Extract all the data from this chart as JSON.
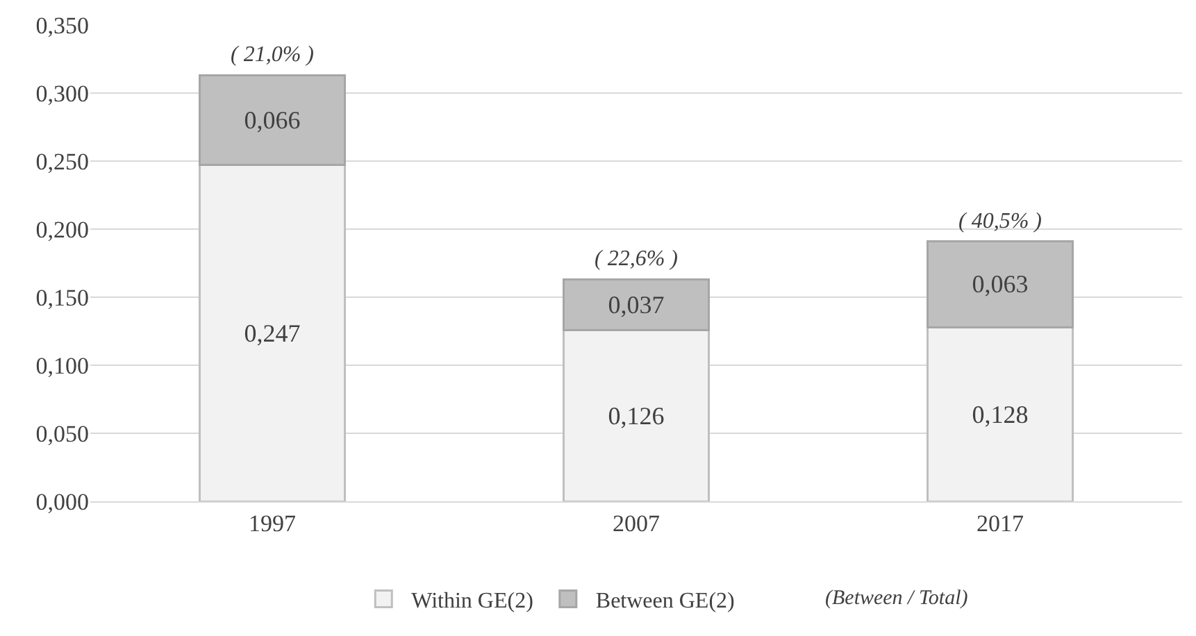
{
  "chart_data": {
    "type": "bar",
    "stacked": true,
    "categories": [
      "1997",
      "2007",
      "2017"
    ],
    "series": [
      {
        "name": "Within GE(2)",
        "color": "#f2f2f2",
        "values": [
          0.247,
          0.126,
          0.128
        ],
        "value_labels": [
          "0,247",
          "0,126",
          "0,128"
        ]
      },
      {
        "name": "Between GE(2)",
        "color": "#bfbfbf",
        "values": [
          0.066,
          0.037,
          0.063
        ],
        "value_labels": [
          "0,066",
          "0,037",
          "0,063"
        ]
      }
    ],
    "annotations": [
      {
        "text": "( 21,0% )",
        "x": "1997",
        "y": 0.313
      },
      {
        "text": "( 22,6% )",
        "x": "2007",
        "y": 0.163
      },
      {
        "text": "( 40,5% )",
        "x": "2017",
        "y": 0.191
      },
      "(Between / Total)"
    ],
    "ylim": [
      0,
      0.35
    ],
    "yticks": [
      {
        "value": 0,
        "label": "0,000"
      },
      {
        "value": 0.05,
        "label": "0,050"
      },
      {
        "value": 0.1,
        "label": "0,100"
      },
      {
        "value": 0.15,
        "label": "0,150"
      },
      {
        "value": 0.2,
        "label": "0,200"
      },
      {
        "value": 0.25,
        "label": "0,250"
      },
      {
        "value": 0.3,
        "label": "0,300"
      },
      {
        "value": 0.35,
        "label": "0,350"
      }
    ],
    "grid": "y",
    "legend": "bottom"
  }
}
